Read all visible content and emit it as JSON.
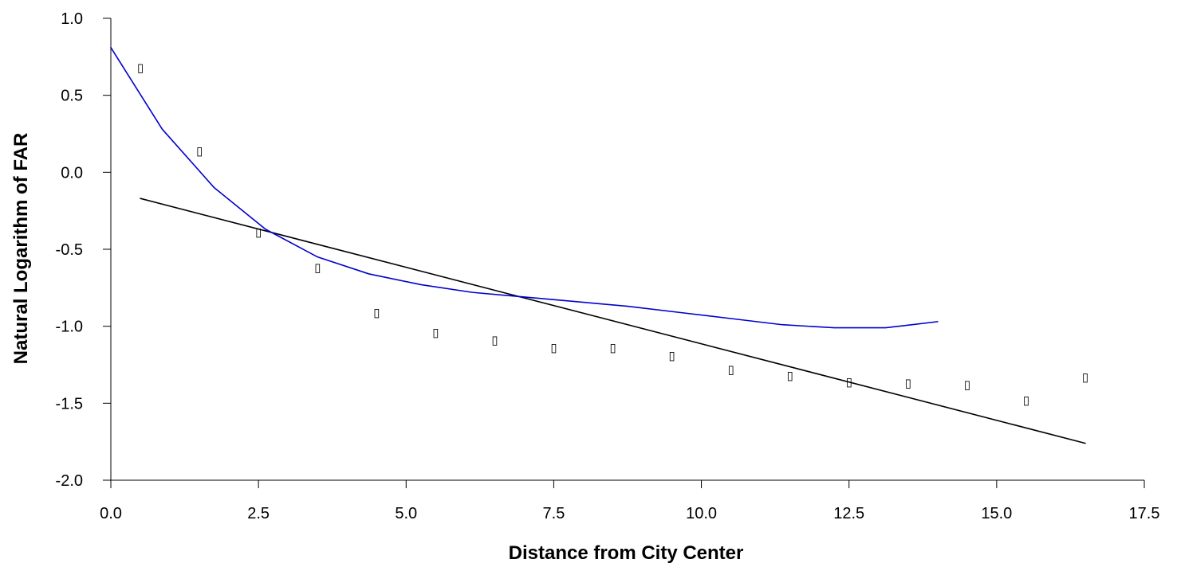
{
  "chart_data": {
    "type": "scatter",
    "title": "",
    "xlabel": "Distance from City Center",
    "ylabel": "Natural Logarithm of FAR",
    "xlim": [
      0,
      17.5
    ],
    "ylim": [
      -2,
      1
    ],
    "x_ticks": [
      0,
      2.5,
      5,
      7.5,
      10,
      12.5,
      15,
      17.5
    ],
    "x_tick_labels": [
      "0.0",
      "2.5",
      "5.0",
      "7.5",
      "10.0",
      "12.5",
      "15.0",
      "17.5"
    ],
    "y_ticks": [
      1,
      0.5,
      0,
      -0.5,
      -1,
      -1.5,
      -2
    ],
    "y_tick_labels": [
      "1.0",
      "0.5",
      "0.0",
      "-0.5",
      "-1.0",
      "-1.5",
      "-2.0"
    ],
    "grid": false,
    "marker_glyph": "▯",
    "series": [
      {
        "kind": "scatter",
        "color": "#000000",
        "points": [
          {
            "x": 0.5,
            "y": 0.68
          },
          {
            "x": 1.5,
            "y": 0.14
          },
          {
            "x": 2.5,
            "y": -0.39
          },
          {
            "x": 3.5,
            "y": -0.62
          },
          {
            "x": 4.5,
            "y": -0.91
          },
          {
            "x": 5.5,
            "y": -1.04
          },
          {
            "x": 6.5,
            "y": -1.09
          },
          {
            "x": 7.5,
            "y": -1.14
          },
          {
            "x": 8.5,
            "y": -1.14
          },
          {
            "x": 9.5,
            "y": -1.19
          },
          {
            "x": 10.5,
            "y": -1.28
          },
          {
            "x": 11.5,
            "y": -1.32
          },
          {
            "x": 12.5,
            "y": -1.36
          },
          {
            "x": 13.5,
            "y": -1.37
          },
          {
            "x": 14.5,
            "y": -1.38
          },
          {
            "x": 15.5,
            "y": -1.48
          },
          {
            "x": 16.5,
            "y": -1.33
          }
        ]
      },
      {
        "kind": "line",
        "color": "#000000",
        "points": [
          {
            "x": 0.5,
            "y": -0.17
          },
          {
            "x": 16.5,
            "y": -1.76
          }
        ]
      },
      {
        "kind": "line",
        "color": "#0000cc",
        "points": [
          {
            "x": 0.0,
            "y": 0.81
          },
          {
            "x": 0.87,
            "y": 0.28
          },
          {
            "x": 1.75,
            "y": -0.1
          },
          {
            "x": 2.62,
            "y": -0.37
          },
          {
            "x": 3.5,
            "y": -0.55
          },
          {
            "x": 4.37,
            "y": -0.66
          },
          {
            "x": 5.25,
            "y": -0.73
          },
          {
            "x": 6.12,
            "y": -0.78
          },
          {
            "x": 7.0,
            "y": -0.81
          },
          {
            "x": 7.87,
            "y": -0.84
          },
          {
            "x": 8.75,
            "y": -0.87
          },
          {
            "x": 9.62,
            "y": -0.91
          },
          {
            "x": 10.5,
            "y": -0.95
          },
          {
            "x": 11.37,
            "y": -0.99
          },
          {
            "x": 12.25,
            "y": -1.01
          },
          {
            "x": 13.12,
            "y": -1.01
          },
          {
            "x": 14.0,
            "y": -0.97
          }
        ]
      }
    ]
  }
}
